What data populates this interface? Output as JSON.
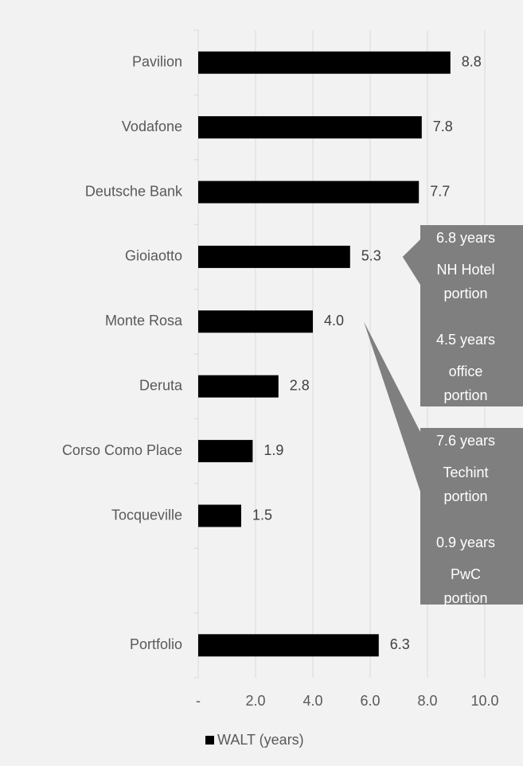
{
  "chart_data": {
    "type": "bar",
    "orientation": "horizontal",
    "categories": [
      "Pavilion",
      "Vodafone",
      "Deutsche Bank",
      "Gioiaotto",
      "Monte Rosa",
      "Deruta",
      "Corso Como Place",
      "Tocqueville",
      null,
      "Portfolio"
    ],
    "series": [
      {
        "name": "WALT (years)",
        "color": "#000000",
        "values": [
          8.8,
          7.8,
          7.7,
          5.3,
          4,
          2.8,
          1.9,
          1.5,
          null,
          6.3
        ],
        "value_labels": [
          "8.8",
          "7.8",
          "7.7",
          "5.3",
          "4.0",
          "2.8",
          "1.9",
          "1.5",
          null,
          "6.3"
        ]
      }
    ],
    "xlim": [
      0,
      10
    ],
    "xticks": [
      {
        "value": 0,
        "label": "-"
      },
      {
        "value": 2,
        "label": "2.0"
      },
      {
        "value": 4,
        "label": "4.0"
      },
      {
        "value": 6,
        "label": "6.0"
      },
      {
        "value": 8,
        "label": "8.0"
      },
      {
        "value": 10,
        "label": "10.0"
      }
    ],
    "grid": true,
    "legend": "bottom",
    "annotations": [
      {
        "category": "Gioiaotto",
        "paragraphs": [
          [
            "6.8 years",
            "NH Hotel",
            "portion"
          ],
          [
            "4.5 years",
            "office",
            "portion"
          ]
        ]
      },
      {
        "category": "Monte Rosa",
        "paragraphs": [
          [
            "7.6 years",
            "Techint",
            "portion"
          ],
          [
            "0.9 years",
            "PwC",
            "portion"
          ]
        ]
      }
    ]
  }
}
